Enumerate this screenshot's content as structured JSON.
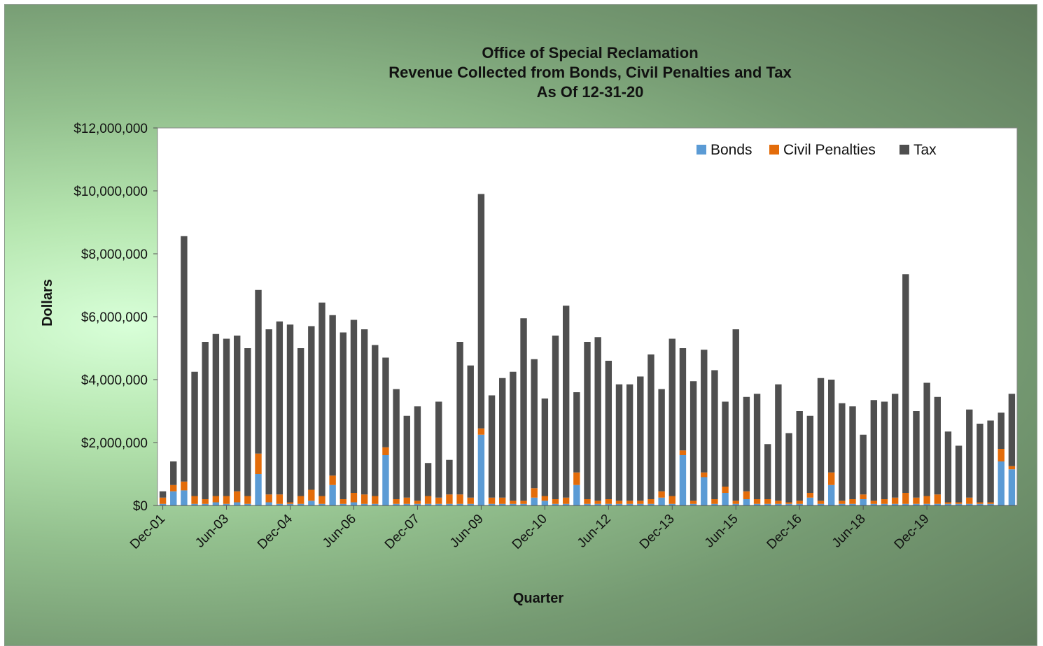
{
  "chart_data": {
    "type": "bar",
    "stacked": true,
    "title": [
      "Office of Special Reclamation",
      "Revenue Collected from Bonds, Civil Penalties and Tax",
      "As Of 12-31-20"
    ],
    "xlabel": "Quarter",
    "ylabel": "Dollars",
    "ylim": [
      0,
      12000000
    ],
    "yticks": [
      0,
      2000000,
      4000000,
      6000000,
      8000000,
      10000000,
      12000000
    ],
    "ytick_labels": [
      "$0",
      "$2,000,000",
      "$4,000,000",
      "$6,000,000",
      "$8,000,000",
      "$10,000,000",
      "$12,000,000"
    ],
    "xtick_labels": [
      "Dec-01",
      "Jun-03",
      "Dec-04",
      "Jun-06",
      "Dec-07",
      "Jun-09",
      "Dec-10",
      "Jun-12",
      "Dec-13",
      "Jun-15",
      "Dec-16",
      "Jun-18",
      "Dec-19"
    ],
    "xtick_every": 6,
    "legend_position": "top-right",
    "colors": {
      "Bonds": "#5b9bd5",
      "Civil Penalties": "#e36c0a",
      "Tax": "#4f4f4f",
      "plot_bg": "#ffffff"
    },
    "series": [
      {
        "name": "Bonds",
        "values": [
          50000,
          450000,
          480000,
          50000,
          50000,
          100000,
          50000,
          100000,
          50000,
          1000000,
          100000,
          50000,
          50000,
          50000,
          150000,
          50000,
          650000,
          50000,
          100000,
          50000,
          50000,
          1600000,
          50000,
          50000,
          50000,
          50000,
          50000,
          50000,
          50000,
          50000,
          2250000,
          50000,
          50000,
          50000,
          50000,
          250000,
          150000,
          50000,
          50000,
          650000,
          50000,
          50000,
          50000,
          50000,
          50000,
          50000,
          50000,
          250000,
          50000,
          1600000,
          50000,
          900000,
          50000,
          400000,
          50000,
          200000,
          50000,
          50000,
          50000,
          50000,
          50000,
          250000,
          50000,
          650000,
          50000,
          50000,
          200000,
          50000,
          50000,
          50000,
          50000,
          50000,
          50000,
          50000,
          50000,
          50000,
          50000,
          50000,
          50000,
          1400000,
          1150000
        ]
      },
      {
        "name": "Civil Penalties",
        "values": [
          200000,
          200000,
          280000,
          250000,
          150000,
          200000,
          250000,
          350000,
          250000,
          650000,
          250000,
          300000,
          50000,
          250000,
          350000,
          250000,
          300000,
          150000,
          300000,
          300000,
          250000,
          250000,
          150000,
          200000,
          100000,
          250000,
          200000,
          300000,
          300000,
          200000,
          200000,
          200000,
          200000,
          100000,
          100000,
          300000,
          150000,
          150000,
          200000,
          400000,
          150000,
          100000,
          150000,
          100000,
          100000,
          100000,
          150000,
          200000,
          250000,
          150000,
          100000,
          150000,
          150000,
          200000,
          100000,
          250000,
          150000,
          150000,
          100000,
          50000,
          100000,
          150000,
          100000,
          400000,
          100000,
          150000,
          150000,
          100000,
          150000,
          200000,
          350000,
          200000,
          250000,
          300000,
          50000,
          50000,
          200000,
          50000,
          50000,
          400000,
          100000
        ]
      },
      {
        "name": "Tax",
        "values": [
          200000,
          750000,
          7800000,
          3950000,
          5000000,
          5150000,
          5000000,
          4950000,
          4700000,
          5200000,
          5250000,
          5500000,
          5650000,
          4700000,
          5200000,
          6150000,
          5100000,
          5300000,
          5500000,
          5250000,
          4800000,
          2850000,
          3500000,
          2600000,
          3000000,
          1050000,
          3050000,
          1100000,
          4850000,
          4200000,
          7450000,
          3250000,
          3800000,
          4100000,
          5800000,
          4100000,
          3100000,
          5200000,
          6100000,
          2550000,
          5000000,
          5200000,
          4400000,
          3700000,
          3700000,
          3950000,
          4600000,
          3250000,
          5000000,
          3250000,
          3800000,
          3900000,
          4100000,
          2700000,
          5450000,
          3000000,
          3350000,
          1750000,
          3700000,
          2200000,
          2850000,
          2450000,
          3900000,
          2950000,
          3100000,
          2950000,
          1900000,
          3200000,
          3100000,
          3300000,
          6950000,
          2750000,
          3600000,
          3100000,
          2250000,
          1800000,
          2800000,
          2500000,
          2600000,
          1150000,
          2300000
        ]
      }
    ]
  }
}
